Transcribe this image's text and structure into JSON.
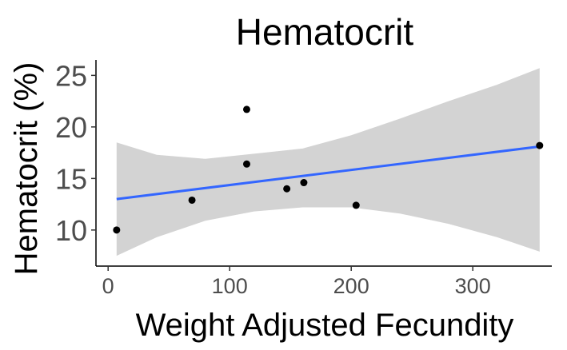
{
  "chart_data": {
    "type": "scatter",
    "title": "Hematocrit",
    "xlabel": "Weight Adjusted Fecundity",
    "ylabel": "Hematocrit (%)",
    "xlim": [
      -10,
      365
    ],
    "ylim": [
      6.5,
      26.5
    ],
    "x_ticks": [
      0,
      100,
      200,
      300
    ],
    "y_ticks": [
      10,
      15,
      20,
      25
    ],
    "grid": false,
    "points": [
      {
        "x": 7,
        "y": 10.0
      },
      {
        "x": 69,
        "y": 12.9
      },
      {
        "x": 114,
        "y": 21.7
      },
      {
        "x": 114,
        "y": 16.4
      },
      {
        "x": 147,
        "y": 14.0
      },
      {
        "x": 161,
        "y": 14.6
      },
      {
        "x": 204,
        "y": 12.4
      },
      {
        "x": 355,
        "y": 18.2
      }
    ],
    "fit_line": {
      "x": [
        7,
        355
      ],
      "y": [
        13.0,
        18.1
      ]
    },
    "confidence_band": {
      "x": [
        7,
        40,
        80,
        120,
        160,
        200,
        240,
        280,
        320,
        355
      ],
      "lower": [
        7.5,
        9.3,
        10.9,
        11.8,
        12.2,
        12.2,
        11.6,
        10.6,
        9.3,
        7.9
      ],
      "upper": [
        18.5,
        17.3,
        16.9,
        17.4,
        17.9,
        19.2,
        20.8,
        22.5,
        24.1,
        25.7
      ]
    },
    "colors": {
      "points": "#000000",
      "fit_line": "#3366ff",
      "band": "#d3d3d3",
      "axis": "#000000",
      "tick_text": "#4d4d4d"
    }
  }
}
